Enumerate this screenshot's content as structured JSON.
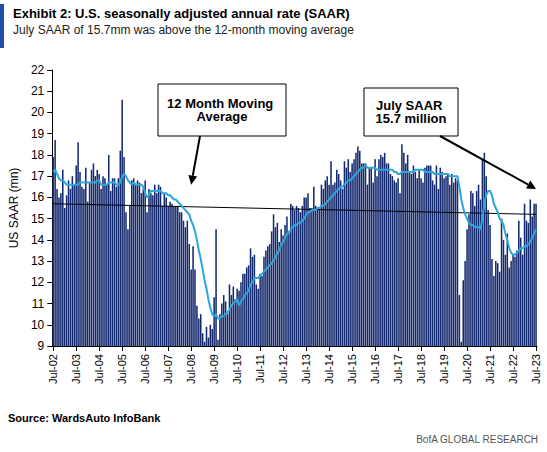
{
  "chart_data": {
    "type": "bar",
    "title": "Exhibit 2: U.S. seasonally adjusted annual rate (SAAR)",
    "subtitle": "July SAAR of 15.7mm was above the 12-month moving average",
    "y_label": "US SAAR (mn)",
    "source": "Source: WardsAuto InfoBank",
    "footer": "BofA GLOBAL RESEARCH",
    "categories": [
      "Jul-02",
      null,
      null,
      null,
      null,
      null,
      null,
      null,
      null,
      null,
      null,
      null,
      "Jul-03",
      null,
      null,
      null,
      null,
      null,
      null,
      null,
      null,
      null,
      null,
      null,
      "Jul-04",
      null,
      null,
      null,
      null,
      null,
      null,
      null,
      null,
      null,
      null,
      null,
      "Jul-05",
      null,
      null,
      null,
      null,
      null,
      null,
      null,
      null,
      null,
      null,
      null,
      "Jul-06",
      null,
      null,
      null,
      null,
      null,
      null,
      null,
      null,
      null,
      null,
      null,
      "Jul-07",
      null,
      null,
      null,
      null,
      null,
      null,
      null,
      null,
      null,
      null,
      null,
      "Jul-08",
      null,
      null,
      null,
      null,
      null,
      null,
      null,
      null,
      null,
      null,
      null,
      "Jul-09",
      null,
      null,
      null,
      null,
      null,
      null,
      null,
      null,
      null,
      null,
      null,
      "Jul-10",
      null,
      null,
      null,
      null,
      null,
      null,
      null,
      null,
      null,
      null,
      null,
      "Jul-11",
      null,
      null,
      null,
      null,
      null,
      null,
      null,
      null,
      null,
      null,
      null,
      "Jul-12",
      null,
      null,
      null,
      null,
      null,
      null,
      null,
      null,
      null,
      null,
      null,
      "Jul-13",
      null,
      null,
      null,
      null,
      null,
      null,
      null,
      null,
      null,
      null,
      null,
      "Jul-14",
      null,
      null,
      null,
      null,
      null,
      null,
      null,
      null,
      null,
      null,
      null,
      "Jul-15",
      null,
      null,
      null,
      null,
      null,
      null,
      null,
      null,
      null,
      null,
      null,
      "Jul-16",
      null,
      null,
      null,
      null,
      null,
      null,
      null,
      null,
      null,
      null,
      null,
      "Jul-17",
      null,
      null,
      null,
      null,
      null,
      null,
      null,
      null,
      null,
      null,
      null,
      "Jul-18",
      null,
      null,
      null,
      null,
      null,
      null,
      null,
      null,
      null,
      null,
      null,
      "Jul-19",
      null,
      null,
      null,
      null,
      null,
      null,
      null,
      null,
      null,
      null,
      null,
      "Jul-20",
      null,
      null,
      null,
      null,
      null,
      null,
      null,
      null,
      null,
      null,
      null,
      "Jul-21",
      null,
      null,
      null,
      null,
      null,
      null,
      null,
      null,
      null,
      null,
      null,
      "Jul-22",
      null,
      null,
      null,
      null,
      null,
      null,
      null,
      null,
      null,
      null,
      null,
      "Jul-23"
    ],
    "series": [
      {
        "name": "US SAAR",
        "type": "bar",
        "color": "#14286e",
        "values": [
          17.9,
          18.7,
          16.4,
          16.0,
          16.2,
          17.3,
          15.5,
          16.1,
          16.8,
          16.4,
          17.0,
          16.6,
          17.5,
          18.6,
          17.2,
          16.5,
          16.4,
          17.4,
          15.8,
          16.7,
          17.3,
          17.6,
          17.0,
          17.3,
          17.1,
          16.4,
          17.0,
          16.9,
          16.6,
          18.0,
          16.3,
          16.9,
          16.9,
          16.5,
          16.9,
          18.2,
          20.6,
          17.9,
          15.3,
          14.5,
          15.6,
          16.8,
          16.9,
          16.6,
          16.8,
          16.7,
          16.2,
          16.4,
          16.8,
          15.3,
          16.4,
          16.2,
          16.1,
          16.6,
          16.2,
          16.6,
          16.5,
          15.6,
          16.2,
          16.0,
          15.6,
          15.8,
          15.7,
          15.6,
          15.6,
          15.6,
          15.3,
          15.3,
          14.9,
          14.6,
          14.9,
          13.8,
          12.6,
          13.7,
          12.6,
          10.9,
          10.3,
          10.5,
          9.6,
          9.2,
          9.9,
          9.4,
          10.0,
          9.8,
          11.3,
          14.5,
          9.3,
          10.5,
          11.0,
          11.4,
          11.1,
          10.5,
          11.9,
          11.4,
          11.8,
          11.2,
          11.7,
          11.6,
          12.0,
          12.4,
          12.4,
          12.7,
          12.8,
          13.6,
          13.2,
          13.3,
          11.9,
          11.7,
          12.4,
          12.3,
          13.2,
          13.5,
          13.7,
          13.8,
          14.4,
          15.2,
          14.6,
          14.8,
          13.9,
          14.5,
          14.2,
          14.7,
          15.1,
          14.4,
          15.7,
          15.6,
          15.4,
          15.6,
          15.5,
          15.3,
          15.6,
          16.0,
          16.0,
          16.2,
          15.5,
          15.5,
          16.5,
          15.6,
          15.5,
          15.5,
          16.6,
          16.4,
          16.8,
          17.0,
          16.6,
          17.7,
          16.6,
          16.7,
          17.3,
          17.1,
          16.8,
          16.4,
          17.7,
          17.4,
          17.8,
          17.2,
          17.6,
          17.8,
          18.1,
          18.4,
          18.2,
          17.6,
          17.6,
          17.6,
          16.6,
          17.4,
          17.4,
          16.7,
          17.8,
          17.0,
          17.8,
          18.0,
          17.9,
          18.1,
          17.6,
          17.6,
          17.1,
          17.0,
          16.8,
          16.7,
          16.9,
          16.2,
          18.5,
          18.1,
          17.6,
          18.0,
          17.2,
          17.1,
          17.5,
          17.2,
          16.9,
          17.3,
          16.9,
          16.7,
          17.4,
          17.5,
          17.5,
          17.5,
          16.8,
          16.6,
          17.5,
          16.4,
          17.4,
          17.2,
          16.9,
          17.0,
          17.1,
          16.6,
          17.1,
          16.7,
          16.9,
          16.8,
          11.4,
          9.2,
          12.1,
          13.0,
          14.5,
          15.2,
          16.3,
          16.2,
          15.6,
          16.3,
          16.6,
          15.9,
          17.8,
          18.1,
          17.0,
          15.4,
          14.7,
          13.1,
          12.3,
          13.0,
          12.9,
          12.5,
          15.0,
          14.0,
          13.3,
          14.3,
          12.7,
          13.0,
          13.3,
          13.2,
          13.5,
          14.9,
          14.1,
          13.3,
          15.7,
          14.9,
          14.8,
          15.9,
          15.1,
          15.7,
          15.7
        ]
      },
      {
        "name": "12 Month Moving Average",
        "type": "line",
        "color": "#2ba6de",
        "values": [
          17.2,
          17.3,
          17.1,
          16.9,
          16.8,
          16.8,
          16.7,
          16.6,
          16.6,
          16.6,
          16.6,
          16.6,
          16.6,
          16.6,
          16.7,
          16.7,
          16.7,
          16.7,
          16.7,
          16.7,
          16.7,
          16.7,
          16.7,
          16.8,
          16.8,
          16.6,
          16.6,
          16.6,
          16.6,
          16.7,
          16.7,
          16.7,
          16.7,
          16.6,
          16.6,
          16.7,
          17.0,
          17.1,
          17.0,
          16.8,
          16.7,
          16.6,
          16.7,
          16.6,
          16.6,
          16.6,
          16.6,
          16.5,
          16.2,
          16.0,
          16.1,
          16.3,
          16.3,
          16.3,
          16.3,
          16.3,
          16.3,
          16.2,
          16.2,
          16.2,
          16.1,
          16.1,
          16.0,
          15.9,
          15.9,
          15.8,
          15.7,
          15.6,
          15.5,
          15.4,
          15.3,
          15.2,
          14.9,
          14.7,
          14.4,
          14.0,
          13.5,
          13.1,
          12.6,
          12.1,
          11.7,
          11.2,
          10.8,
          10.5,
          10.4,
          10.5,
          10.3,
          10.3,
          10.4,
          10.4,
          10.5,
          10.6,
          10.7,
          10.9,
          11.0,
          11.1,
          11.2,
          10.9,
          11.1,
          11.2,
          11.4,
          11.5,
          11.6,
          11.9,
          12.0,
          12.2,
          12.2,
          12.2,
          12.3,
          12.4,
          12.5,
          12.6,
          12.7,
          12.8,
          12.9,
          13.0,
          13.2,
          13.4,
          13.5,
          13.8,
          13.9,
          14.1,
          14.3,
          14.3,
          14.5,
          14.6,
          14.7,
          14.7,
          14.8,
          14.8,
          14.9,
          15.0,
          15.2,
          15.3,
          15.3,
          15.4,
          15.4,
          15.4,
          15.5,
          15.5,
          15.6,
          15.6,
          15.7,
          15.8,
          15.9,
          16.0,
          16.1,
          16.2,
          16.3,
          16.4,
          16.5,
          16.5,
          16.6,
          16.7,
          16.8,
          16.8,
          16.9,
          17.0,
          17.1,
          17.2,
          17.3,
          17.4,
          17.4,
          17.5,
          17.4,
          17.4,
          17.4,
          17.4,
          17.4,
          17.3,
          17.3,
          17.3,
          17.3,
          17.3,
          17.3,
          17.3,
          17.3,
          17.3,
          17.2,
          17.2,
          17.1,
          17.1,
          17.2,
          17.2,
          17.2,
          17.2,
          17.2,
          17.2,
          17.2,
          17.3,
          17.3,
          17.3,
          17.3,
          17.3,
          17.2,
          17.2,
          17.2,
          17.2,
          17.2,
          17.1,
          17.1,
          17.1,
          17.1,
          17.1,
          17.1,
          17.1,
          17.1,
          17.0,
          17.0,
          17.0,
          17.0,
          17.0,
          16.5,
          15.9,
          15.5,
          15.2,
          15.0,
          14.8,
          14.7,
          14.7,
          14.6,
          14.6,
          14.6,
          14.5,
          15.0,
          15.7,
          16.1,
          16.3,
          16.3,
          16.1,
          15.7,
          15.5,
          15.3,
          15.0,
          14.9,
          14.7,
          14.3,
          14.0,
          13.6,
          13.4,
          13.3,
          13.3,
          13.4,
          13.5,
          13.6,
          13.6,
          13.7,
          13.7,
          13.8,
          13.9,
          14.1,
          14.3,
          14.5
        ]
      }
    ],
    "trend_line": {
      "x": [
        "Jul-02",
        "Jul-23"
      ],
      "values": [
        15.7,
        15.2
      ],
      "color": "#000000"
    },
    "annotations": [
      {
        "text": "12 Month Moving Average",
        "x": "Jul-08",
        "y": 16.6
      },
      {
        "text": "July SAAR 15.7 million",
        "x": "Jul-23",
        "y": 16.4
      }
    ],
    "ylim": [
      9,
      22
    ],
    "yticks": [
      9,
      10,
      11,
      12,
      13,
      14,
      15,
      16,
      17,
      18,
      19,
      20,
      21,
      22
    ],
    "grid": false
  }
}
